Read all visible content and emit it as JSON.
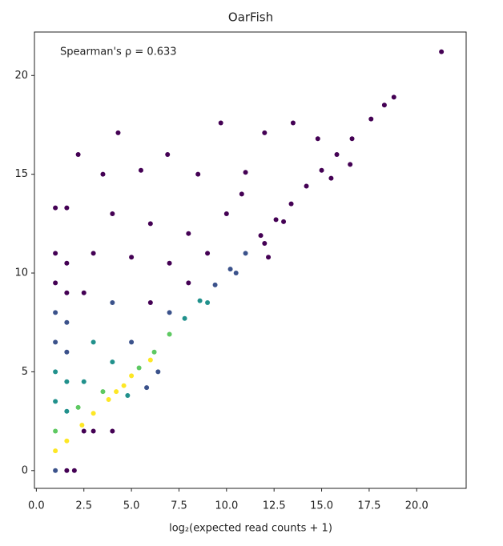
{
  "chart_data": {
    "type": "scatter",
    "title": "OarFish",
    "annotation": "Spearman's ρ = 0.633",
    "x_label": "log₂(expected read counts + 1)",
    "xlim": [
      -0.1,
      22.6
    ],
    "ylim": [
      -0.9,
      22.2
    ],
    "xticks": [
      {
        "value": 0,
        "label": "0.0"
      },
      {
        "value": 2.5,
        "label": "2.5"
      },
      {
        "value": 5,
        "label": "5.0"
      },
      {
        "value": 7.5,
        "label": "7.5"
      },
      {
        "value": 10,
        "label": "10.0"
      },
      {
        "value": 12.5,
        "label": "12.5"
      },
      {
        "value": 15,
        "label": "15.0"
      },
      {
        "value": 17.5,
        "label": "17.5"
      },
      {
        "value": 20,
        "label": "20.0"
      }
    ],
    "yticks": [
      0,
      5,
      10,
      15,
      20
    ],
    "x": [
      21.3,
      18.8,
      18.3,
      17.6,
      16.6,
      15.8,
      15.0,
      14.2,
      13.4,
      12.6,
      11.8,
      11.0,
      10.2,
      9.4,
      8.6,
      7.8,
      7.0,
      6.2,
      5.4,
      4.6,
      3.8,
      3.0,
      2.4,
      5.0,
      6.0,
      4.2,
      9.0,
      10.5,
      12.0,
      13.0,
      15.5,
      12.2,
      6.4,
      4.0,
      3.0,
      2.5,
      1.6,
      2.0,
      1.0,
      1.0,
      1.0,
      1.0,
      1.0,
      1.0,
      1.0,
      1.0,
      1.0,
      1.0,
      1.6,
      1.6,
      1.6,
      1.6,
      1.6,
      1.6,
      1.6,
      1.6,
      2.2,
      4.3,
      6.9,
      9.7,
      12.0,
      13.5,
      3.5,
      5.5,
      8.5,
      11.0,
      4.0,
      6.0,
      8.0,
      10.0,
      3.0,
      5.0,
      7.0,
      9.0,
      2.5,
      4.0,
      6.0,
      8.0,
      3.0,
      5.0,
      7.0,
      2.5,
      4.0,
      3.5,
      2.2,
      4.8,
      5.8,
      14.8,
      16.5,
      10.8
    ],
    "values": [
      21.2,
      18.9,
      18.5,
      17.8,
      16.8,
      16.0,
      15.2,
      14.4,
      13.5,
      12.7,
      11.9,
      11.0,
      10.2,
      9.4,
      8.6,
      7.7,
      6.9,
      6.0,
      5.2,
      4.3,
      3.6,
      2.9,
      2.3,
      4.8,
      5.6,
      4.0,
      8.5,
      10.0,
      11.5,
      12.6,
      14.8,
      10.8,
      5.0,
      2.0,
      2.0,
      2.0,
      0.0,
      0.0,
      0.0,
      1.0,
      2.0,
      3.5,
      5.0,
      6.5,
      8.0,
      9.5,
      11.0,
      13.3,
      1.5,
      3.0,
      4.5,
      6.0,
      7.5,
      9.0,
      10.5,
      13.3,
      16.0,
      17.1,
      16.0,
      17.6,
      17.1,
      17.6,
      15.0,
      15.2,
      15.0,
      15.1,
      13.0,
      12.5,
      12.0,
      13.0,
      11.0,
      10.8,
      10.5,
      11.0,
      9.0,
      8.5,
      8.5,
      9.5,
      6.5,
      6.5,
      8.0,
      4.5,
      5.5,
      4.0,
      3.2,
      3.8,
      4.2,
      16.8,
      15.5,
      14.0
    ],
    "colors": [
      "#440154",
      "#440154",
      "#440154",
      "#440154",
      "#440154",
      "#440154",
      "#440154",
      "#440154",
      "#440154",
      "#440154",
      "#440154",
      "#3b528b",
      "#3b528b",
      "#3b528b",
      "#21918c",
      "#21918c",
      "#5ec962",
      "#5ec962",
      "#5ec962",
      "#fde725",
      "#fde725",
      "#fde725",
      "#fde725",
      "#fde725",
      "#fde725",
      "#fde725",
      "#21918c",
      "#3b528b",
      "#440154",
      "#440154",
      "#440154",
      "#440154",
      "#3b528b",
      "#440154",
      "#440154",
      "#440154",
      "#440154",
      "#440154",
      "#3b528b",
      "#fde725",
      "#5ec962",
      "#21918c",
      "#21918c",
      "#3b528b",
      "#3b528b",
      "#440154",
      "#440154",
      "#440154",
      "#fde725",
      "#21918c",
      "#21918c",
      "#3b528b",
      "#3b528b",
      "#440154",
      "#440154",
      "#440154",
      "#440154",
      "#440154",
      "#440154",
      "#440154",
      "#440154",
      "#440154",
      "#440154",
      "#440154",
      "#440154",
      "#440154",
      "#440154",
      "#440154",
      "#440154",
      "#440154",
      "#440154",
      "#440154",
      "#440154",
      "#440154",
      "#440154",
      "#3b528b",
      "#440154",
      "#440154",
      "#21918c",
      "#3b528b",
      "#3b528b",
      "#21918c",
      "#21918c",
      "#5ec962",
      "#5ec962",
      "#21918c",
      "#3b528b",
      "#440154",
      "#440154",
      "#440154"
    ]
  }
}
